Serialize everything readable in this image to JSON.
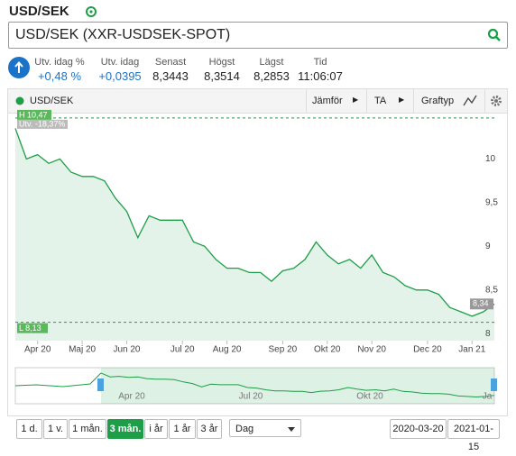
{
  "header": {
    "title": "USD/SEK"
  },
  "search": {
    "value": "USD/SEK (XXR-USDSEK-SPOT)"
  },
  "quote": [
    {
      "label": "Utv. idag %",
      "value": "+0,48 %"
    },
    {
      "label": "Utv. idag",
      "value": "+0,0395"
    },
    {
      "label": "Senast",
      "value": "8,3443"
    },
    {
      "label": "Högst",
      "value": "8,3514"
    },
    {
      "label": "Lägst",
      "value": "8,2853"
    },
    {
      "label": "Tid",
      "value": "11:06:07"
    }
  ],
  "toolbar": {
    "compare": "Jämför",
    "ta": "TA",
    "chart_type": "Graftyp"
  },
  "chart_data": {
    "type": "line",
    "x": [
      null,
      null,
      "Apr 20",
      null,
      null,
      null,
      "Maj 20",
      null,
      null,
      null,
      "Jun 20",
      null,
      null,
      null,
      null,
      "Jul 20",
      null,
      null,
      null,
      "Aug 20",
      null,
      null,
      null,
      null,
      "Sep 20",
      null,
      null,
      null,
      "Okt 20",
      null,
      null,
      null,
      "Nov 20",
      null,
      null,
      null,
      null,
      "Dec 20",
      null,
      null,
      null,
      "Jan 21",
      null,
      null
    ],
    "series": [
      {
        "name": "USD/SEK",
        "color": "#1e9e48",
        "values": [
          10.35,
          10.0,
          10.05,
          9.95,
          10.0,
          9.85,
          9.8,
          9.8,
          9.75,
          9.55,
          9.4,
          9.1,
          9.35,
          9.3,
          9.3,
          9.3,
          9.05,
          9.0,
          8.85,
          8.75,
          8.75,
          8.7,
          8.7,
          8.6,
          8.72,
          8.75,
          8.85,
          9.05,
          8.9,
          8.8,
          8.85,
          8.75,
          8.9,
          8.7,
          8.65,
          8.55,
          8.5,
          8.5,
          8.45,
          8.3,
          8.25,
          8.2,
          8.25,
          8.34
        ]
      }
    ],
    "ylim": [
      7.92,
      10.5
    ],
    "yticks": [
      8,
      {
        "value": 8.5,
        "label": "8,5"
      },
      9,
      {
        "value": 9.5,
        "label": "9,5"
      },
      10
    ],
    "annotations": {
      "high": {
        "value": 10.47,
        "label": "H 10,47"
      },
      "change": "Utv. -18,37%",
      "low": {
        "value": 8.13,
        "label": "L 8,13"
      },
      "last": {
        "value": 8.34,
        "label": "8,34"
      }
    }
  },
  "navigator": {
    "labels": [
      "Apr 20",
      "Jul 20",
      "Okt 20",
      "Ja"
    ]
  },
  "controls": {
    "ranges": [
      "1 d.",
      "1 v.",
      "1 mån.",
      "3 mån.",
      "i år",
      "1 år",
      "3 år"
    ],
    "active": 3,
    "interval": "Dag",
    "from": "2020-03-20",
    "to": "2021-01-15"
  }
}
